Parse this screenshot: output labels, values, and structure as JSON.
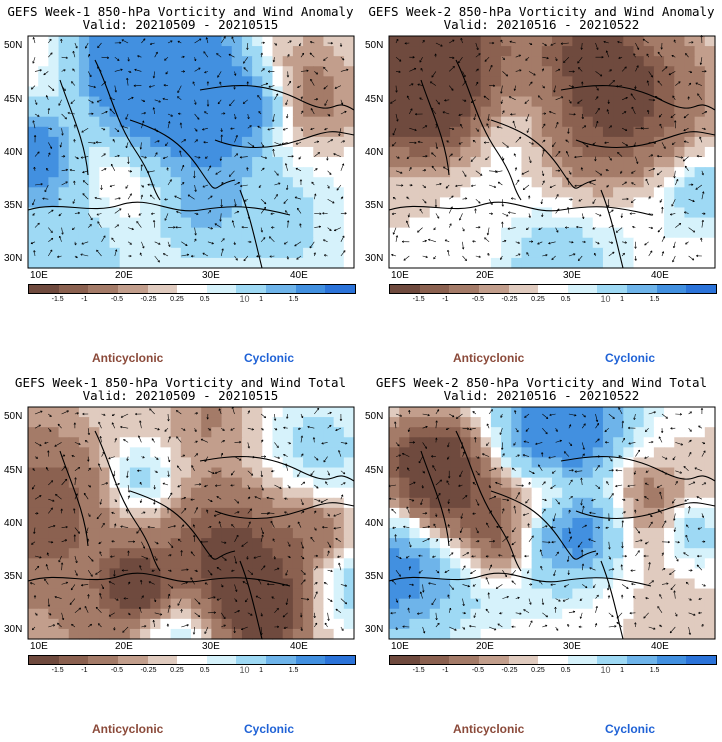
{
  "panels": [
    {
      "title_line1": "GEFS Week-1 850-hPa Vorticity and Wind Anomaly",
      "title_line2": "Valid: 20210509 - 20210515"
    },
    {
      "title_line1": "GEFS Week-2 850-hPa Vorticity and Wind Anomaly",
      "title_line2": "Valid: 20210516 - 20210522"
    },
    {
      "title_line1": "GEFS Week-1 850-hPa Vorticity and Wind Total",
      "title_line2": "Valid: 20210509 - 20210515"
    },
    {
      "title_line1": "GEFS Week-2 850-hPa Vorticity and Wind Total",
      "title_line2": "Valid: 20210516 - 20210522"
    }
  ],
  "lat_labels": [
    "50N",
    "45N",
    "40N",
    "35N",
    "30N"
  ],
  "lon_labels": [
    "10E",
    "20E",
    "30E",
    "40E"
  ],
  "colorbar": {
    "labels": [
      "-1.5",
      "-1",
      "-0.5",
      "-0.25",
      "0.25",
      "0.5",
      "1",
      "1.5"
    ],
    "mark": "10",
    "colors": [
      "#6f4a3e",
      "#8b6150",
      "#a47b68",
      "#c29e8c",
      "#e0cbbf",
      "#ffffff",
      "#d6f2fb",
      "#9ed9f4",
      "#6eb4ea",
      "#4290e0",
      "#2b73d9"
    ]
  },
  "legend": {
    "anticyclonic": "Anticyclonic",
    "cyclonic": "Cyclonic"
  },
  "colors": {
    "anticyclonic_text": "#8B4A3A",
    "cyclonic_text": "#1f62d6"
  }
}
